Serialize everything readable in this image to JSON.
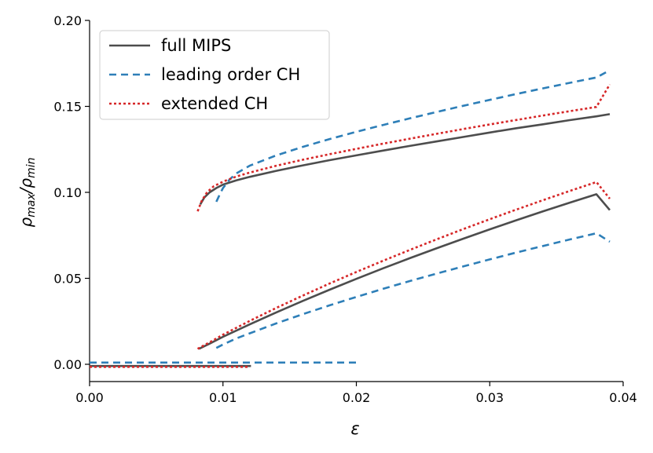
{
  "chart_data": {
    "type": "line",
    "title": "",
    "xlabel": "ε",
    "ylabel_main": "ρ",
    "ylabel_sub1": "max",
    "ylabel_sep": "/ρ",
    "ylabel_sub2": "min",
    "xlim": [
      0.0,
      0.04
    ],
    "ylim": [
      -0.01,
      0.2
    ],
    "xticks": [
      0.0,
      0.01,
      0.02,
      0.03,
      0.04
    ],
    "xtick_labels": [
      "0.00",
      "0.01",
      "0.02",
      "0.03",
      "0.04"
    ],
    "yticks": [
      0.0,
      0.05,
      0.1,
      0.15,
      0.2
    ],
    "ytick_labels": [
      "0.00",
      "0.05",
      "0.10",
      "0.15",
      "0.20"
    ],
    "grid": false,
    "legend_position": "top-left",
    "series": [
      {
        "name": "full MIPS",
        "style": "solid",
        "color": "#4d4d4d",
        "segments": [
          [
            [
              0.0,
              -0.001
            ],
            [
              0.0121,
              -0.001
            ]
          ],
          [
            [
              0.0083,
              0.093
            ],
            [
              0.0086,
              0.097
            ],
            [
              0.009,
              0.1
            ],
            [
              0.0095,
              0.1025
            ],
            [
              0.01,
              0.1045
            ],
            [
              0.011,
              0.107
            ],
            [
              0.012,
              0.109
            ],
            [
              0.014,
              0.1125
            ],
            [
              0.016,
              0.1157
            ],
            [
              0.018,
              0.1187
            ],
            [
              0.02,
              0.1215
            ],
            [
              0.022,
              0.1243
            ],
            [
              0.024,
              0.127
            ],
            [
              0.026,
              0.1296
            ],
            [
              0.028,
              0.1322
            ],
            [
              0.03,
              0.1348
            ],
            [
              0.032,
              0.1373
            ],
            [
              0.034,
              0.1396
            ],
            [
              0.036,
              0.142
            ],
            [
              0.038,
              0.1442
            ],
            [
              0.039,
              0.1455
            ]
          ],
          [
            [
              0.0082,
              0.009
            ],
            [
              0.009,
              0.012
            ],
            [
              0.01,
              0.016
            ],
            [
              0.012,
              0.0232
            ],
            [
              0.014,
              0.0302
            ],
            [
              0.016,
              0.0369
            ],
            [
              0.018,
              0.0434
            ],
            [
              0.02,
              0.0497
            ],
            [
              0.022,
              0.0558
            ],
            [
              0.024,
              0.0617
            ],
            [
              0.026,
              0.0674
            ],
            [
              0.028,
              0.073
            ],
            [
              0.03,
              0.0785
            ],
            [
              0.032,
              0.0838
            ],
            [
              0.034,
              0.089
            ],
            [
              0.036,
              0.094
            ],
            [
              0.038,
              0.0989
            ],
            [
              0.039,
              0.0897
            ]
          ]
        ]
      },
      {
        "name": "leading order CH",
        "style": "dashed",
        "color": "#2e7fb8",
        "segments": [
          [
            [
              0.0,
              0.001
            ],
            [
              0.0201,
              0.001
            ]
          ],
          [
            [
              0.0095,
              0.0945
            ],
            [
              0.0098,
              0.0995
            ],
            [
              0.01,
              0.1025
            ],
            [
              0.0105,
              0.1075
            ],
            [
              0.011,
              0.111
            ],
            [
              0.012,
              0.1155
            ],
            [
              0.014,
              0.1215
            ],
            [
              0.016,
              0.1265
            ],
            [
              0.018,
              0.131
            ],
            [
              0.02,
              0.1352
            ],
            [
              0.022,
              0.1392
            ],
            [
              0.024,
              0.143
            ],
            [
              0.026,
              0.1467
            ],
            [
              0.028,
              0.1503
            ],
            [
              0.03,
              0.1538
            ],
            [
              0.032,
              0.1572
            ],
            [
              0.034,
              0.1605
            ],
            [
              0.036,
              0.1637
            ],
            [
              0.038,
              0.1668
            ],
            [
              0.039,
              0.171
            ]
          ],
          [
            [
              0.0095,
              0.0095
            ],
            [
              0.01,
              0.0115
            ],
            [
              0.011,
              0.015
            ],
            [
              0.012,
              0.018
            ],
            [
              0.014,
              0.0238
            ],
            [
              0.016,
              0.0292
            ],
            [
              0.018,
              0.0343
            ],
            [
              0.02,
              0.0392
            ],
            [
              0.022,
              0.0439
            ],
            [
              0.024,
              0.0484
            ],
            [
              0.026,
              0.0527
            ],
            [
              0.028,
              0.0569
            ],
            [
              0.03,
              0.061
            ],
            [
              0.032,
              0.065
            ],
            [
              0.034,
              0.0688
            ],
            [
              0.036,
              0.0726
            ],
            [
              0.038,
              0.0762
            ],
            [
              0.039,
              0.0713
            ]
          ]
        ]
      },
      {
        "name": "extended CH",
        "style": "dotted",
        "color": "#d62728",
        "segments": [
          [
            [
              0.0,
              -0.0015
            ],
            [
              0.012,
              -0.0015
            ]
          ],
          [
            [
              0.0081,
              0.089
            ],
            [
              0.0084,
              0.095
            ],
            [
              0.0088,
              0.1
            ],
            [
              0.0093,
              0.1035
            ],
            [
              0.01,
              0.1062
            ],
            [
              0.011,
              0.1092
            ],
            [
              0.012,
              0.1115
            ],
            [
              0.014,
              0.1155
            ],
            [
              0.016,
              0.119
            ],
            [
              0.018,
              0.1222
            ],
            [
              0.02,
              0.1253
            ],
            [
              0.022,
              0.1283
            ],
            [
              0.024,
              0.1312
            ],
            [
              0.026,
              0.134
            ],
            [
              0.028,
              0.1368
            ],
            [
              0.03,
              0.1395
            ],
            [
              0.032,
              0.1421
            ],
            [
              0.034,
              0.1447
            ],
            [
              0.036,
              0.1472
            ],
            [
              0.038,
              0.1497
            ],
            [
              0.039,
              0.1628
            ]
          ],
          [
            [
              0.0081,
              0.009
            ],
            [
              0.009,
              0.0128
            ],
            [
              0.01,
              0.0172
            ],
            [
              0.012,
              0.0252
            ],
            [
              0.014,
              0.0328
            ],
            [
              0.016,
              0.04
            ],
            [
              0.018,
              0.047
            ],
            [
              0.02,
              0.0537
            ],
            [
              0.022,
              0.0602
            ],
            [
              0.024,
              0.0665
            ],
            [
              0.026,
              0.0726
            ],
            [
              0.028,
              0.0786
            ],
            [
              0.03,
              0.0844
            ],
            [
              0.032,
              0.09
            ],
            [
              0.034,
              0.0955
            ],
            [
              0.036,
              0.1008
            ],
            [
              0.038,
              0.106
            ],
            [
              0.039,
              0.0963
            ]
          ]
        ]
      }
    ]
  }
}
